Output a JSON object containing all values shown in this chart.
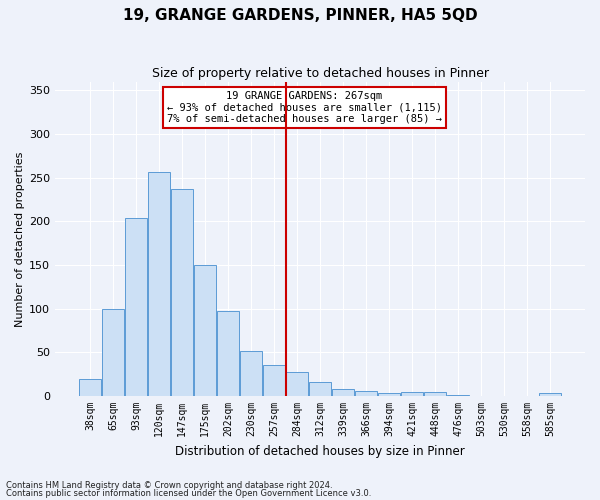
{
  "title": "19, GRANGE GARDENS, PINNER, HA5 5QD",
  "subtitle": "Size of property relative to detached houses in Pinner",
  "xlabel": "Distribution of detached houses by size in Pinner",
  "ylabel": "Number of detached properties",
  "footnote1": "Contains HM Land Registry data © Crown copyright and database right 2024.",
  "footnote2": "Contains public sector information licensed under the Open Government Licence v3.0.",
  "annotation_line1": "19 GRANGE GARDENS: 267sqm",
  "annotation_line2": "← 93% of detached houses are smaller (1,115)",
  "annotation_line3": "7% of semi-detached houses are larger (85) →",
  "bar_color": "#cce0f5",
  "bar_edge_color": "#5b9bd5",
  "vline_color": "#cc0000",
  "annotation_box_edge": "#cc0000",
  "background_color": "#eef2fa",
  "grid_color": "#ffffff",
  "categories": [
    "38sqm",
    "65sqm",
    "93sqm",
    "120sqm",
    "147sqm",
    "175sqm",
    "202sqm",
    "230sqm",
    "257sqm",
    "284sqm",
    "312sqm",
    "339sqm",
    "366sqm",
    "394sqm",
    "421sqm",
    "448sqm",
    "476sqm",
    "503sqm",
    "530sqm",
    "558sqm",
    "585sqm"
  ],
  "values": [
    20,
    100,
    204,
    256,
    237,
    150,
    97,
    52,
    35,
    27,
    16,
    8,
    6,
    4,
    5,
    5,
    1,
    0,
    0,
    0,
    3
  ],
  "ylim": [
    0,
    360
  ],
  "yticks": [
    0,
    50,
    100,
    150,
    200,
    250,
    300,
    350
  ],
  "vline_x": 8.5,
  "title_fontsize": 11,
  "subtitle_fontsize": 9,
  "xlabel_fontsize": 8.5,
  "ylabel_fontsize": 8,
  "tick_fontsize": 7,
  "annotation_fontsize": 7.5,
  "footnote_fontsize": 6
}
